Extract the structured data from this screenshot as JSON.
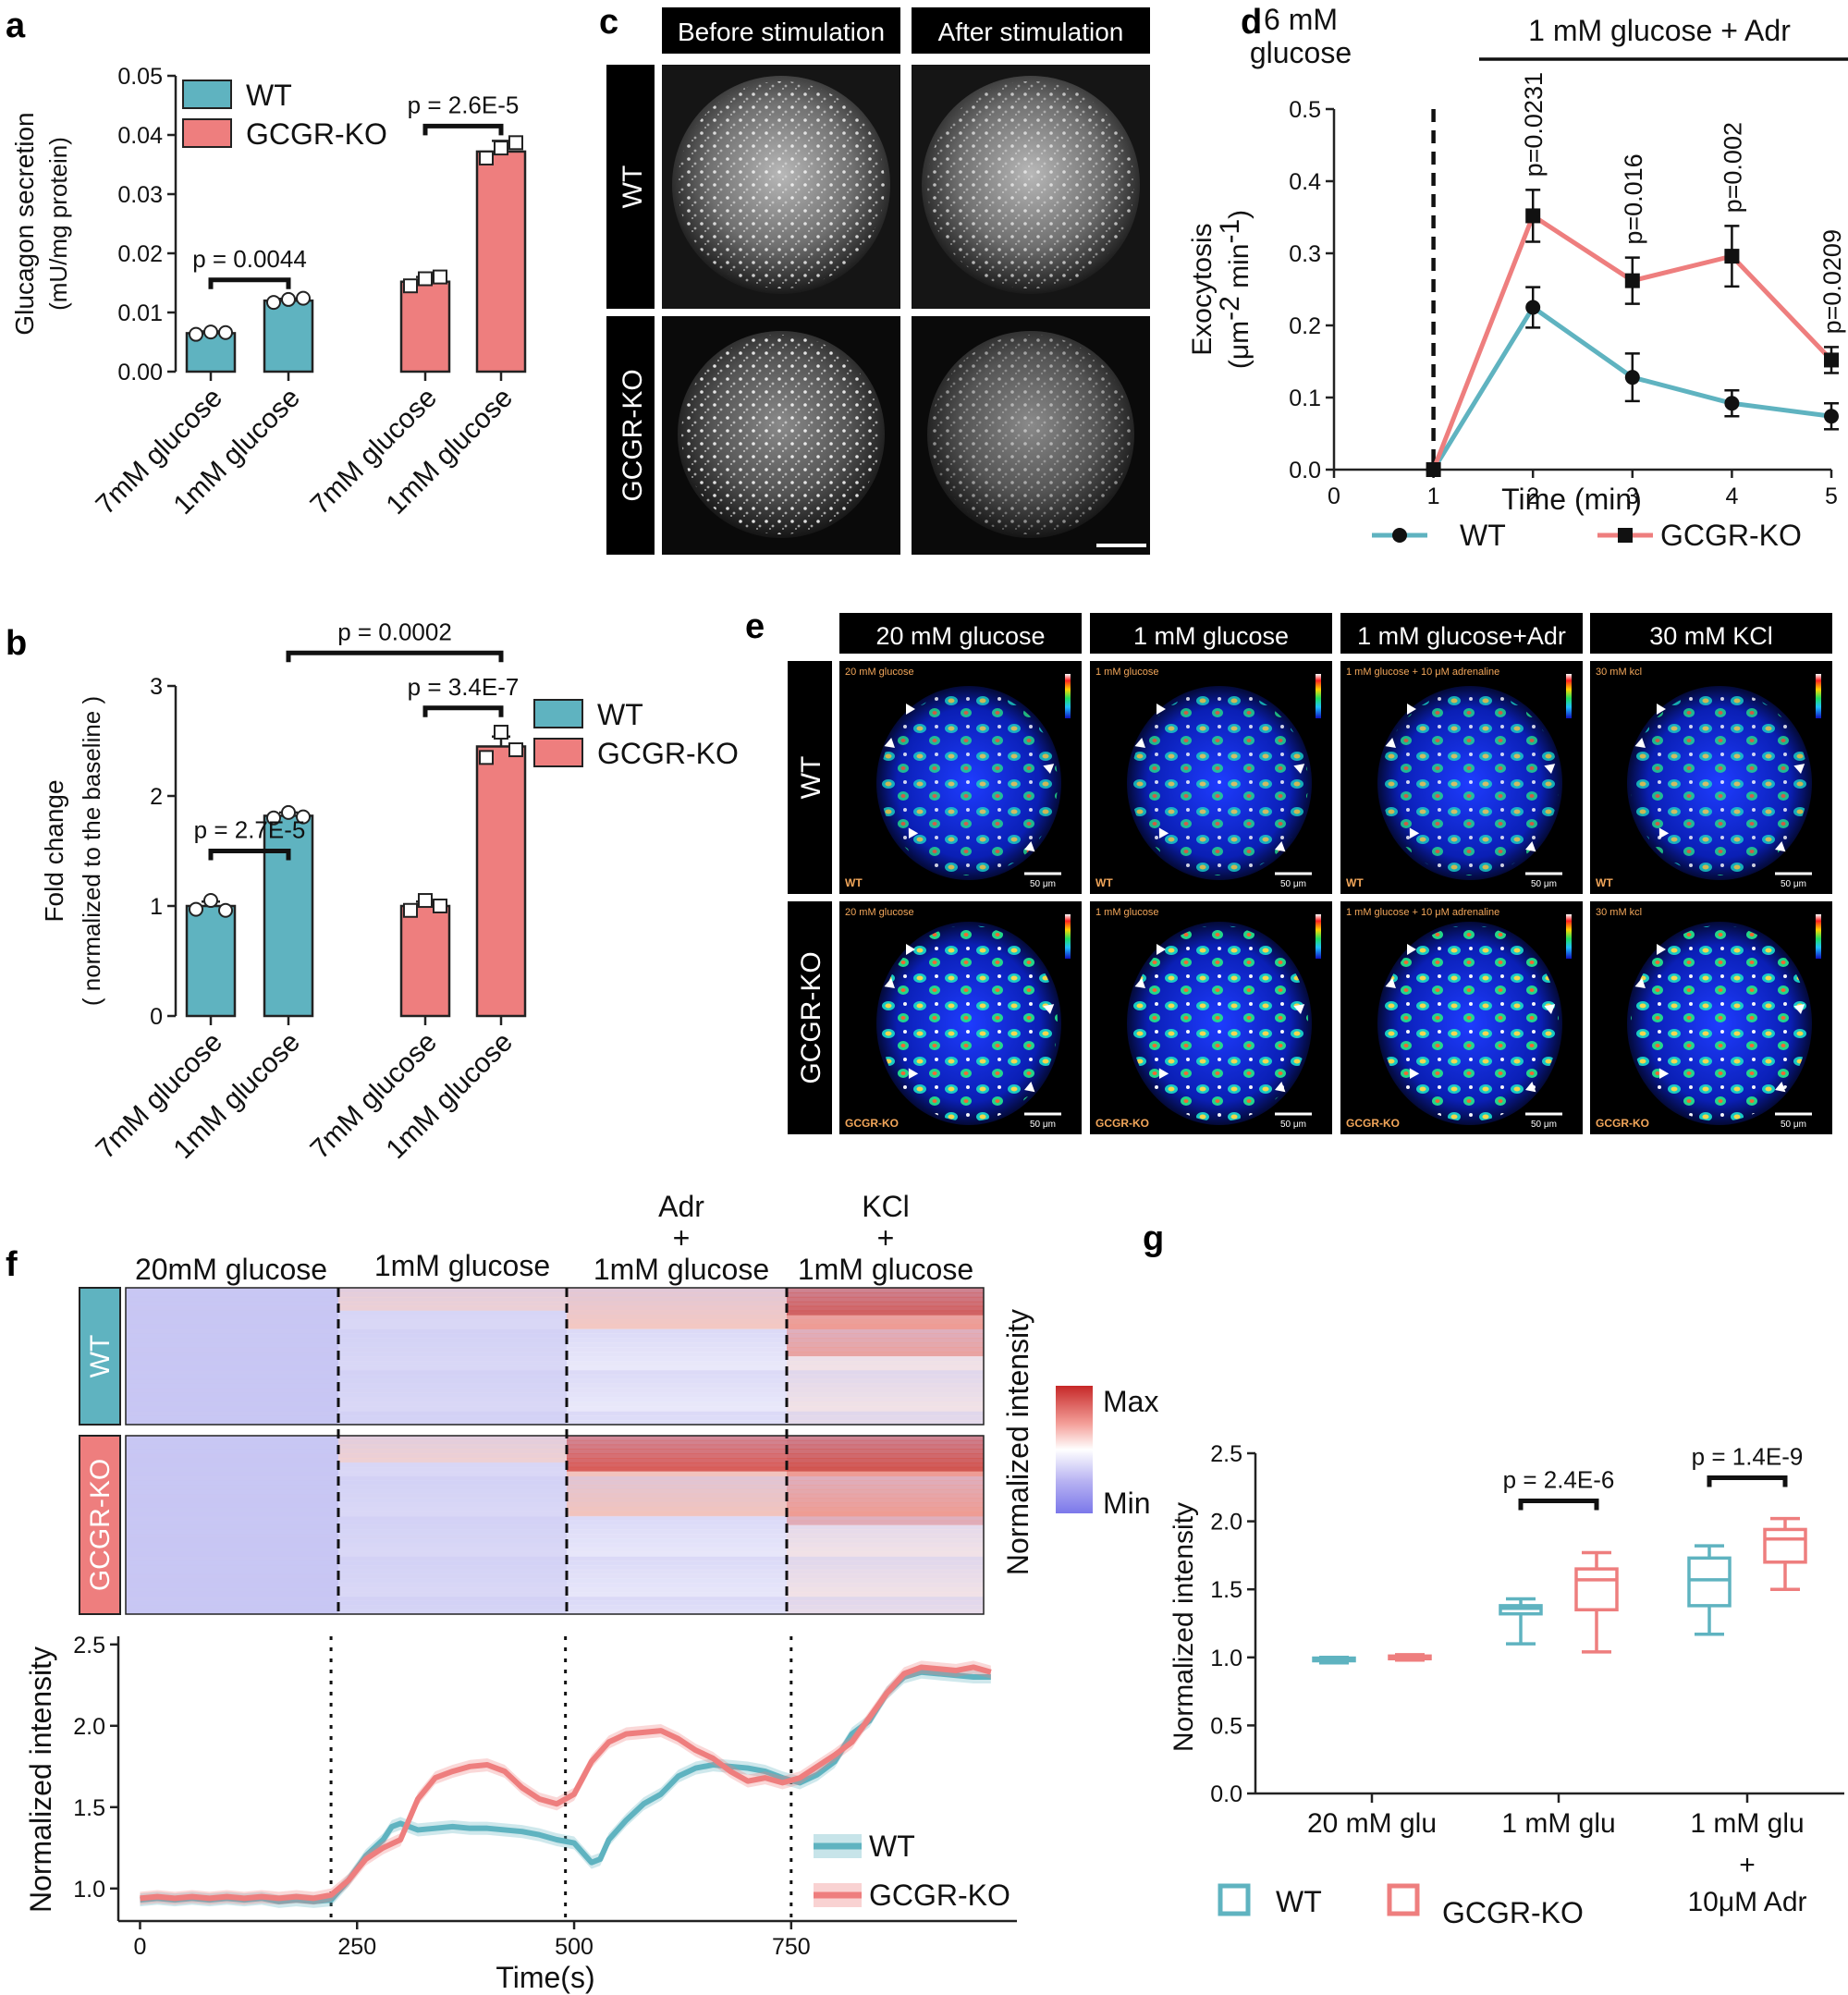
{
  "colors": {
    "wt": "#5fb3c0",
    "ko": "#ee7e7e",
    "axis": "#222222"
  },
  "panel_labels": {
    "a": "a",
    "b": "b",
    "c": "c",
    "d": "d",
    "e": "e",
    "f": "f",
    "g": "g"
  },
  "legend": {
    "wt": "WT",
    "ko": "GCGR-KO"
  },
  "panel_c": {
    "cols": [
      "Before stimulation",
      "After stimulation"
    ],
    "rows": [
      "WT",
      "GCGR-KO"
    ]
  },
  "panel_e": {
    "cols": [
      "20 mM glucose",
      "1 mM glucose",
      "1 mM glucose+Adr",
      "30 mM KCl"
    ],
    "inset_labels": [
      "20 mM glucose",
      "1 mM glucose",
      "1 mM glucose + 10 μM adrenaline",
      "30 mM kcl"
    ],
    "rows": [
      "WT",
      "GCGR-KO"
    ],
    "scale": "50 μm"
  },
  "panel_f": {
    "conditions": [
      "20mM glucose",
      "1mM glucose"
    ],
    "adr": {
      "line1": "Adr",
      "line2": "+",
      "line3": "1mM glucose"
    },
    "kcl": {
      "line1": "KCl",
      "line2": "+",
      "line3": "1mM glucose"
    },
    "colorbar_title": "Normalized intensity",
    "colorbar_max": "Max",
    "colorbar_min": "Min"
  },
  "chart_data": [
    {
      "id": "a",
      "type": "bar",
      "ylabel_line1": "Glucagon secretion",
      "ylabel_line2": "(mU/mg protein)",
      "ylim": [
        0,
        0.05
      ],
      "yticks": [
        "0.00",
        "0.01",
        "0.02",
        "0.03",
        "0.04",
        "0.05"
      ],
      "categories": [
        "7mM glucose",
        "1mM glucose",
        "7mM glucose",
        "1mM glucose"
      ],
      "groups": [
        "WT",
        "WT",
        "GCGR-KO",
        "GCGR-KO"
      ],
      "values": [
        0.0065,
        0.012,
        0.0152,
        0.0372
      ],
      "errors": [
        0.0003,
        0.0003,
        0.0008,
        0.0018
      ],
      "points": [
        [
          0.0063,
          0.0067,
          0.0066
        ],
        [
          0.0117,
          0.0122,
          0.0124
        ],
        [
          0.0145,
          0.0157,
          0.016
        ],
        [
          0.0361,
          0.0378,
          0.0387
        ]
      ],
      "pvalues": [
        {
          "text": "p = 0.0044",
          "from": 0,
          "to": 1,
          "y": 0.0155
        },
        {
          "text": "p = 2.6E-5",
          "from": 2,
          "to": 3,
          "y": 0.0415
        }
      ]
    },
    {
      "id": "b",
      "type": "bar",
      "ylabel_line1": "Fold change",
      "ylabel_line2": "( normalized to the baseline )",
      "ylim": [
        0,
        3
      ],
      "yticks": [
        "0",
        "1",
        "2",
        "3"
      ],
      "categories": [
        "7mM glucose",
        "1mM glucose",
        "7mM glucose",
        "1mM glucose"
      ],
      "groups": [
        "WT",
        "WT",
        "GCGR-KO",
        "GCGR-KO"
      ],
      "values": [
        1.0,
        1.82,
        1.0,
        2.45
      ],
      "errors": [
        0.04,
        0.03,
        0.04,
        0.09
      ],
      "points": [
        [
          0.97,
          1.05,
          0.96
        ],
        [
          1.8,
          1.85,
          1.81
        ],
        [
          0.96,
          1.05,
          1.0
        ],
        [
          2.35,
          2.58,
          2.42
        ]
      ],
      "pvalues": [
        {
          "text": "p = 2.7E-5",
          "from": 0,
          "to": 1,
          "y": 1.5
        },
        {
          "text": "p = 3.4E-7",
          "from": 2,
          "to": 3,
          "y": 2.8
        },
        {
          "text": "p = 0.0002",
          "from": 1,
          "to": 3,
          "y": 3.3
        }
      ]
    },
    {
      "id": "d",
      "type": "line",
      "top_left_line1": "6 mM",
      "top_left_line2": "glucose",
      "top_right": "1 mM glucose + Adr",
      "xlabel": "Time (min)",
      "ylabel_line1": "Exocytosis",
      "ylabel_line2": "(μm",
      "ylabel_sup1": "-2",
      "ylabel_mid": " min",
      "ylabel_sup2": "-1",
      "ylabel_end": ")",
      "xlim": [
        0,
        5
      ],
      "ylim": [
        0,
        0.5
      ],
      "xticks": [
        "0",
        "1",
        "2",
        "3",
        "4",
        "5"
      ],
      "yticks": [
        "0.0",
        "0.1",
        "0.2",
        "0.3",
        "0.4",
        "0.5"
      ],
      "x": [
        1,
        2,
        3,
        4,
        5
      ],
      "series": [
        {
          "name": "WT",
          "values": [
            0.0,
            0.225,
            0.128,
            0.092,
            0.074
          ],
          "errors": [
            0,
            0.028,
            0.033,
            0.018,
            0.018
          ]
        },
        {
          "name": "GCGR-KO",
          "values": [
            0.0,
            0.352,
            0.262,
            0.296,
            0.152
          ],
          "errors": [
            0,
            0.036,
            0.032,
            0.042,
            0.018
          ]
        }
      ],
      "pvalues": [
        {
          "x": 2,
          "text": "p=0.0231"
        },
        {
          "x": 3,
          "text": "p=0.016"
        },
        {
          "x": 4,
          "text": "p=0.002"
        },
        {
          "x": 5,
          "text": "p=0.0209"
        }
      ]
    },
    {
      "id": "f",
      "type": "line",
      "xlabel": "Time(s)",
      "ylabel": "Normalized intensity",
      "xlim": [
        -25,
        1010
      ],
      "ylim": [
        0.8,
        2.55
      ],
      "xticks": [
        "0",
        "250",
        "500",
        "750"
      ],
      "yticks": [
        "1.0",
        "1.5",
        "2.0",
        "2.5"
      ],
      "vlines": [
        220,
        490,
        750
      ],
      "series": [
        {
          "name": "WT",
          "x": [
            0,
            20,
            40,
            60,
            80,
            100,
            120,
            140,
            160,
            180,
            200,
            220,
            240,
            260,
            280,
            290,
            300,
            320,
            340,
            360,
            380,
            400,
            420,
            440,
            460,
            480,
            500,
            520,
            530,
            540,
            560,
            580,
            600,
            620,
            640,
            660,
            680,
            700,
            720,
            740,
            760,
            780,
            800,
            820,
            840,
            860,
            880,
            900,
            920,
            940,
            960,
            980
          ],
          "values": [
            0.93,
            0.94,
            0.93,
            0.94,
            0.93,
            0.94,
            0.93,
            0.94,
            0.92,
            0.93,
            0.92,
            0.93,
            1.05,
            1.2,
            1.3,
            1.38,
            1.4,
            1.36,
            1.37,
            1.38,
            1.37,
            1.37,
            1.36,
            1.35,
            1.33,
            1.3,
            1.28,
            1.16,
            1.18,
            1.3,
            1.42,
            1.52,
            1.58,
            1.69,
            1.74,
            1.76,
            1.75,
            1.74,
            1.72,
            1.68,
            1.65,
            1.7,
            1.78,
            1.95,
            2.03,
            2.2,
            2.3,
            2.33,
            2.32,
            2.31,
            2.3,
            2.3
          ]
        },
        {
          "name": "GCGR-KO",
          "x": [
            0,
            20,
            40,
            60,
            80,
            100,
            120,
            140,
            160,
            180,
            200,
            220,
            240,
            260,
            280,
            300,
            320,
            340,
            360,
            380,
            400,
            420,
            440,
            460,
            480,
            500,
            520,
            540,
            560,
            580,
            600,
            620,
            640,
            660,
            680,
            700,
            720,
            740,
            760,
            780,
            800,
            820,
            840,
            860,
            880,
            900,
            920,
            940,
            960,
            980
          ],
          "values": [
            0.94,
            0.95,
            0.94,
            0.95,
            0.94,
            0.95,
            0.94,
            0.95,
            0.94,
            0.95,
            0.94,
            0.96,
            1.05,
            1.18,
            1.25,
            1.3,
            1.55,
            1.68,
            1.72,
            1.75,
            1.76,
            1.72,
            1.62,
            1.55,
            1.52,
            1.58,
            1.78,
            1.9,
            1.95,
            1.96,
            1.97,
            1.92,
            1.85,
            1.8,
            1.72,
            1.66,
            1.68,
            1.65,
            1.68,
            1.75,
            1.82,
            1.9,
            2.05,
            2.2,
            2.32,
            2.36,
            2.35,
            2.34,
            2.36,
            2.33
          ]
        }
      ]
    },
    {
      "id": "g",
      "type": "box",
      "ylabel": "Normalized intensity",
      "ylim": [
        0,
        2.5
      ],
      "yticks": [
        "0.0",
        "0.5",
        "1.0",
        "1.5",
        "2.0",
        "2.5"
      ],
      "categories": [
        "20 mM glu",
        "1 mM glu",
        "1 mM glu"
      ],
      "cat3_extra": {
        "line2": "+",
        "line3": "10μM Adr"
      },
      "boxes": [
        {
          "group": "WT",
          "cat": 0,
          "min": 0.96,
          "q1": 0.975,
          "median": 0.985,
          "q3": 0.995,
          "max": 1.0
        },
        {
          "group": "GCGR-KO",
          "cat": 0,
          "min": 0.98,
          "q1": 0.99,
          "median": 1.0,
          "q3": 1.01,
          "max": 1.02
        },
        {
          "group": "WT",
          "cat": 1,
          "min": 1.1,
          "q1": 1.32,
          "median": 1.36,
          "q3": 1.38,
          "max": 1.43
        },
        {
          "group": "GCGR-KO",
          "cat": 1,
          "min": 1.04,
          "q1": 1.35,
          "median": 1.57,
          "q3": 1.65,
          "max": 1.77
        },
        {
          "group": "WT",
          "cat": 2,
          "min": 1.17,
          "q1": 1.38,
          "median": 1.57,
          "q3": 1.73,
          "max": 1.82
        },
        {
          "group": "GCGR-KO",
          "cat": 2,
          "min": 1.5,
          "q1": 1.7,
          "median": 1.87,
          "q3": 1.94,
          "max": 2.02
        }
      ],
      "pvalues": [
        {
          "text": "p = 2.4E-6",
          "cat": 1,
          "y": 2.15
        },
        {
          "text": "p = 1.4E-9",
          "cat": 2,
          "y": 2.32
        }
      ]
    }
  ]
}
